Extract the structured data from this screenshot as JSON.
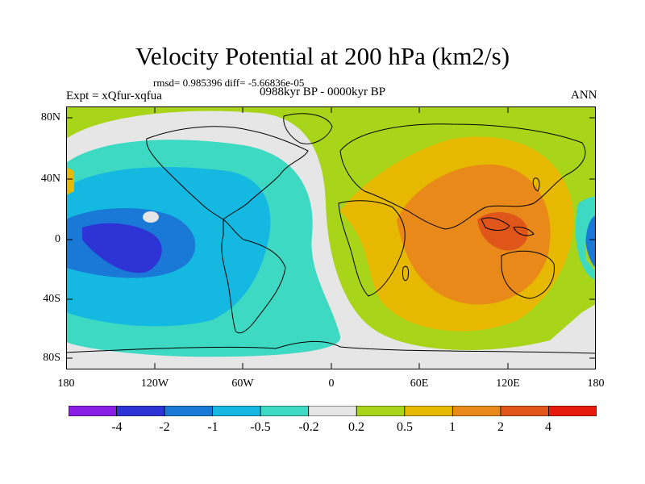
{
  "title": "Velocity Potential at 200 hPa (km2/s)",
  "stats": "rmsd= 0.985396 diff= -5.66836e-05",
  "experiment": "Expt = xQfur-xqfua",
  "period": "0988kyr BP - 0000kyr BP",
  "season": "ANN",
  "lat_labels": [
    "80N",
    "40N",
    "0",
    "40S",
    "80S"
  ],
  "lon_labels": [
    "180",
    "120W",
    "60W",
    "0",
    "60E",
    "120E",
    "180"
  ],
  "colorbar": {
    "labels": [
      "-4",
      "-2",
      "-1",
      "-0.5",
      "-0.2",
      "0.2",
      "0.5",
      "1",
      "2",
      "4"
    ],
    "colors": [
      "#8a1ee6",
      "#2d33d4",
      "#1a78d6",
      "#15b8e0",
      "#3dd9c2",
      "#e6e6e6",
      "#a8d41a",
      "#e6b800",
      "#e8891a",
      "#e0561a",
      "#e61a0d"
    ]
  }
}
